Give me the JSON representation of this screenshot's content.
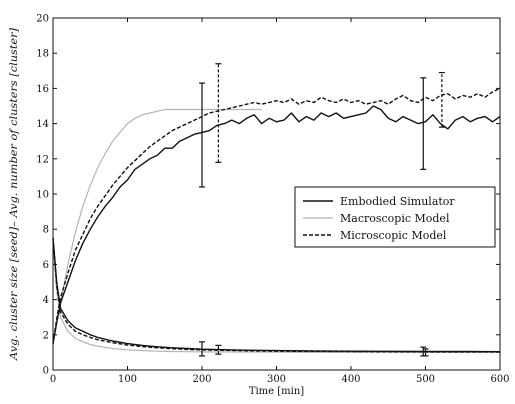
{
  "chart_data": {
    "type": "line",
    "xlabel": "Time [min]",
    "ylabel": "Avg. cluster size [seed]– Avg. number of clusters [cluster]",
    "xlim": [
      0,
      600
    ],
    "ylim": [
      0,
      20
    ],
    "xticks": [
      "0",
      "100",
      "200",
      "300",
      "400",
      "500",
      "600"
    ],
    "yticks": [
      "0",
      "2",
      "4",
      "6",
      "8",
      "10",
      "12",
      "14",
      "16",
      "18",
      "20"
    ],
    "grid": false,
    "legend_position": "middle-right",
    "series": [
      {
        "name": "Embodied Simulator",
        "style": "solid",
        "color": "#111111",
        "group": "cluster_size",
        "x": [
          0,
          5,
          10,
          20,
          30,
          40,
          50,
          60,
          70,
          80,
          90,
          100,
          110,
          120,
          130,
          140,
          150,
          160,
          170,
          180,
          190,
          200,
          210,
          220,
          230,
          240,
          250,
          260,
          270,
          280,
          290,
          300,
          310,
          320,
          330,
          340,
          350,
          360,
          370,
          380,
          390,
          400,
          410,
          420,
          430,
          440,
          450,
          460,
          470,
          480,
          490,
          500,
          510,
          520,
          530,
          540,
          550,
          560,
          570,
          580,
          590,
          600
        ],
        "y": [
          1.5,
          2.7,
          3.8,
          5.0,
          6.2,
          7.2,
          8.0,
          8.7,
          9.3,
          9.8,
          10.4,
          10.8,
          11.4,
          11.7,
          12.0,
          12.2,
          12.6,
          12.6,
          13.0,
          13.2,
          13.4,
          13.5,
          13.6,
          13.9,
          14.0,
          14.2,
          14.0,
          14.3,
          14.5,
          14.0,
          14.3,
          14.1,
          14.2,
          14.6,
          14.1,
          14.4,
          14.2,
          14.6,
          14.4,
          14.6,
          14.3,
          14.4,
          14.5,
          14.6,
          15.0,
          14.8,
          14.3,
          14.1,
          14.4,
          14.2,
          14.0,
          14.1,
          14.5,
          14.0,
          13.7,
          14.2,
          14.4,
          14.1,
          14.3,
          14.4,
          14.1,
          14.4
        ]
      },
      {
        "name": "Macroscopic Model",
        "style": "solid",
        "color": "#b4b4b4",
        "group": "cluster_size",
        "x": [
          0,
          10,
          20,
          30,
          40,
          50,
          60,
          70,
          80,
          90,
          100,
          110,
          120,
          130,
          140,
          150,
          160,
          170,
          180,
          190,
          200,
          220,
          240,
          260,
          280
        ],
        "y": [
          1.5,
          3.8,
          6.0,
          7.8,
          9.3,
          10.5,
          11.5,
          12.3,
          13.0,
          13.5,
          14.0,
          14.3,
          14.5,
          14.6,
          14.7,
          14.8,
          14.8,
          14.8,
          14.8,
          14.8,
          14.8,
          14.8,
          14.8,
          14.8,
          14.8
        ]
      },
      {
        "name": "Microscopic Model",
        "style": "dashed",
        "color": "#111111",
        "group": "cluster_size",
        "x": [
          0,
          5,
          10,
          20,
          30,
          40,
          50,
          60,
          70,
          80,
          90,
          100,
          110,
          120,
          130,
          140,
          150,
          160,
          170,
          180,
          190,
          200,
          210,
          220,
          230,
          240,
          250,
          260,
          270,
          280,
          290,
          300,
          310,
          320,
          330,
          340,
          350,
          360,
          370,
          380,
          390,
          400,
          410,
          420,
          430,
          440,
          450,
          460,
          470,
          480,
          490,
          500,
          510,
          520,
          530,
          540,
          550,
          560,
          570,
          580,
          590,
          600
        ],
        "y": [
          1.5,
          2.9,
          4.1,
          5.5,
          6.8,
          7.7,
          8.6,
          9.3,
          9.9,
          10.5,
          11.0,
          11.5,
          11.9,
          12.3,
          12.7,
          13.0,
          13.3,
          13.6,
          13.8,
          14.0,
          14.2,
          14.4,
          14.6,
          14.7,
          14.8,
          14.9,
          15.0,
          15.1,
          15.2,
          15.1,
          15.2,
          15.3,
          15.2,
          15.4,
          15.1,
          15.3,
          15.2,
          15.5,
          15.3,
          15.2,
          15.4,
          15.2,
          15.3,
          15.1,
          15.2,
          15.3,
          15.1,
          15.4,
          15.6,
          15.3,
          15.2,
          15.5,
          15.3,
          15.6,
          15.7,
          15.4,
          15.6,
          15.5,
          15.7,
          15.5,
          15.8,
          16.0
        ]
      },
      {
        "name": "Embodied Simulator",
        "style": "solid",
        "color": "#111111",
        "group": "num_clusters",
        "x": [
          0,
          5,
          10,
          20,
          30,
          40,
          50,
          60,
          80,
          100,
          120,
          140,
          160,
          180,
          200,
          250,
          300,
          350,
          400,
          450,
          500,
          550,
          600
        ],
        "y": [
          7.5,
          5.0,
          3.5,
          2.8,
          2.4,
          2.2,
          2.0,
          1.85,
          1.65,
          1.5,
          1.4,
          1.32,
          1.26,
          1.22,
          1.18,
          1.13,
          1.1,
          1.08,
          1.07,
          1.06,
          1.05,
          1.05,
          1.04
        ]
      },
      {
        "name": "Macroscopic Model",
        "style": "solid",
        "color": "#b4b4b4",
        "group": "num_clusters",
        "x": [
          0,
          5,
          10,
          20,
          30,
          40,
          50,
          60,
          80,
          100,
          120,
          140,
          160,
          180,
          200,
          250,
          300,
          350,
          400,
          450,
          500,
          550,
          600
        ],
        "y": [
          7.5,
          4.5,
          3.0,
          2.2,
          1.8,
          1.6,
          1.45,
          1.35,
          1.22,
          1.15,
          1.1,
          1.07,
          1.05,
          1.04,
          1.03,
          1.02,
          1.01,
          1.0,
          1.0,
          1.0,
          1.0,
          1.0,
          1.0
        ]
      },
      {
        "name": "Microscopic Model",
        "style": "dashed",
        "color": "#111111",
        "group": "num_clusters",
        "x": [
          0,
          5,
          10,
          20,
          30,
          40,
          50,
          60,
          80,
          100,
          120,
          140,
          160,
          180,
          200,
          250,
          300,
          350,
          400,
          450,
          500,
          550,
          600
        ],
        "y": [
          7.5,
          4.8,
          3.3,
          2.6,
          2.2,
          2.0,
          1.85,
          1.72,
          1.55,
          1.42,
          1.33,
          1.26,
          1.21,
          1.17,
          1.14,
          1.1,
          1.07,
          1.06,
          1.05,
          1.04,
          1.03,
          1.03,
          1.02
        ]
      }
    ],
    "error_bars": [
      {
        "series": "Embodied Simulator",
        "style": "solid",
        "x": 200,
        "ylow": 10.4,
        "yhigh": 16.3
      },
      {
        "series": "Microscopic Model",
        "style": "dashed",
        "x": 222,
        "ylow": 11.8,
        "yhigh": 17.4
      },
      {
        "series": "Embodied Simulator",
        "style": "solid",
        "x": 497,
        "ylow": 11.4,
        "yhigh": 16.6
      },
      {
        "series": "Microscopic Model",
        "style": "dashed",
        "x": 522,
        "ylow": 13.8,
        "yhigh": 16.9
      },
      {
        "series": "Embodied Simulator",
        "style": "solid",
        "x": 200,
        "ylow": 0.8,
        "yhigh": 1.6
      },
      {
        "series": "Microscopic Model",
        "style": "dashed",
        "x": 222,
        "ylow": 0.9,
        "yhigh": 1.4
      },
      {
        "series": "Embodied Simulator",
        "style": "solid",
        "x": 497,
        "ylow": 0.8,
        "yhigh": 1.3
      },
      {
        "series": "Microscopic Model",
        "style": "dashed",
        "x": 500,
        "ylow": 0.8,
        "yhigh": 1.2
      }
    ],
    "legend": [
      {
        "label": "Embodied Simulator",
        "style": "solid",
        "color": "#111111"
      },
      {
        "label": "Macroscopic Model",
        "style": "solid",
        "color": "#b4b4b4"
      },
      {
        "label": "Microscopic Model",
        "style": "dashed",
        "color": "#111111"
      }
    ]
  }
}
